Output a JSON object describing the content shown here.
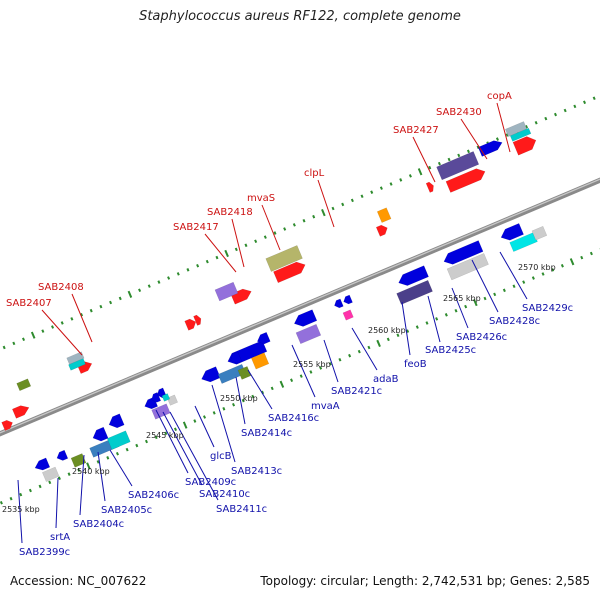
{
  "title": "Staphylococcus aureus RF122, complete genome",
  "footer": {
    "accession": "Accession: NC_007622",
    "summary": "Topology: circular; Length: 2,742,531 bp; Genes: 2,585"
  },
  "colors": {
    "track": "#8a8a8a",
    "tick": "#2e8b2e",
    "forward_label": "#cc1111",
    "reverse_label": "#1111aa"
  },
  "kbp_ticks": [
    {
      "text": "2535 kbp"
    },
    {
      "text": "2540 kbp"
    },
    {
      "text": "2545 kbp"
    },
    {
      "text": "2550 kbp"
    },
    {
      "text": "2555 kbp"
    },
    {
      "text": "2560 kbp"
    },
    {
      "text": "2565 kbp"
    },
    {
      "text": "2570 kbp"
    }
  ],
  "forward_labels": [
    {
      "text": "SAB2407"
    },
    {
      "text": "SAB2408"
    },
    {
      "text": "SAB2417"
    },
    {
      "text": "SAB2418"
    },
    {
      "text": "mvaS"
    },
    {
      "text": "clpL"
    },
    {
      "text": "SAB2427"
    },
    {
      "text": "SAB2430"
    },
    {
      "text": "copA"
    }
  ],
  "reverse_labels": [
    {
      "text": "SAB2399c"
    },
    {
      "text": "srtA"
    },
    {
      "text": "SAB2404c"
    },
    {
      "text": "SAB2405c"
    },
    {
      "text": "SAB2406c"
    },
    {
      "text": "SAB2409c"
    },
    {
      "text": "SAB2410c"
    },
    {
      "text": "SAB2411c"
    },
    {
      "text": "glcB"
    },
    {
      "text": "SAB2413c"
    },
    {
      "text": "SAB2414c"
    },
    {
      "text": "SAB2416c"
    },
    {
      "text": "mvaA"
    },
    {
      "text": "SAB2421c"
    },
    {
      "text": "adaB"
    },
    {
      "text": "feoB"
    },
    {
      "text": "SAB2425c"
    },
    {
      "text": "SAB2426c"
    },
    {
      "text": "SAB2428c"
    },
    {
      "text": "SAB2429c"
    }
  ]
}
